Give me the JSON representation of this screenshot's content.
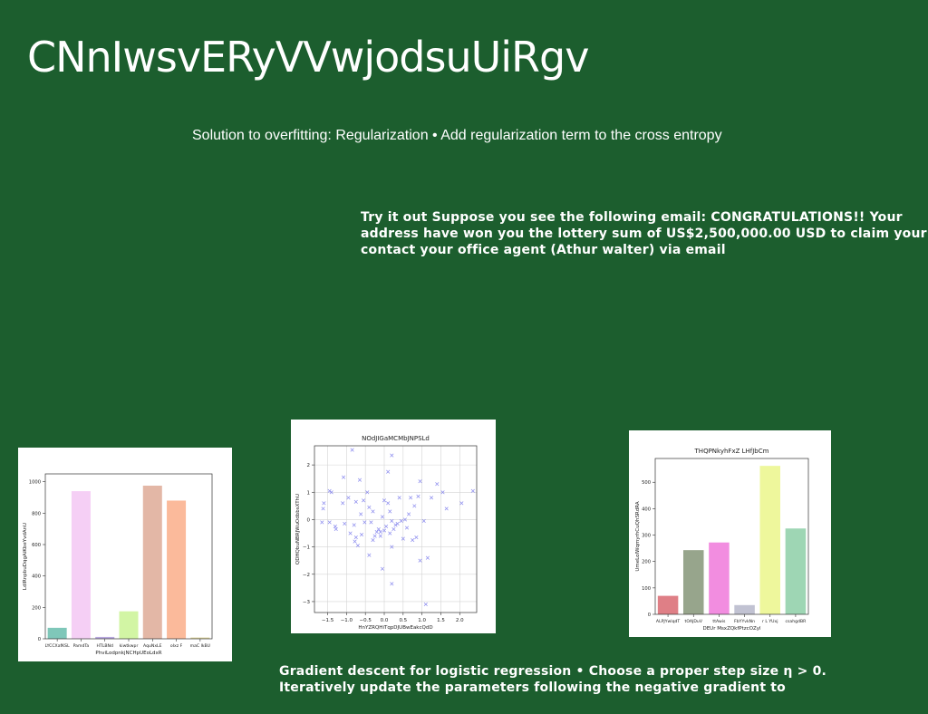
{
  "slide": {
    "title": "CNnIwsvERyVVwjodsuUiRgv",
    "subtitle": "Solution to overfitting: Regularization • Add regularization term to the cross entropy",
    "para1": [
      "Try it out Suppose you see the following email: CONGRATULATIONS!! Your",
      "address have won you the lottery sum of US$2,500,000.00 USD to claim your",
      "contact your office agent (Athur walter) via email"
    ],
    "para2": [
      "Gradient descent for logistic regression • Choose a proper step size η > 0.",
      "Iteratively update the parameters following the negative gradient to"
    ]
  },
  "chart_data": [
    {
      "type": "bar",
      "title": "",
      "xlabel": "PhviLodpnkjNCHpUEoLdxR",
      "ylabel": "LdlRnpbuDqgAiKbeYvdAnU",
      "categories": [
        "LYCCXafKSL",
        "PamdTa",
        "HTLBNd",
        "kiwtkwpr",
        "AquNxLE",
        "oIxz F",
        "maC lkBU"
      ],
      "values": [
        70,
        940,
        12,
        175,
        975,
        880,
        8
      ],
      "colors": [
        "#7fc7b9",
        "#f5cff5",
        "#b9a9e0",
        "#d2f5a4",
        "#e3b7a6",
        "#fbba9b",
        "#dfd59a"
      ],
      "ylim": [
        0,
        1050
      ],
      "yticks": [
        0,
        200,
        400,
        600,
        800,
        1000
      ]
    },
    {
      "type": "scatter",
      "title": "NOdJIGaMCMbJNPSLd",
      "xlabel": "HnYZRQHiTqpDJUBwEakcQdD",
      "ylabel": "QDHQbuNBRJWuOdbbsXThU",
      "xlim": [
        -1.85,
        2.45
      ],
      "ylim": [
        -3.4,
        2.7
      ],
      "xticks": [
        -1.5,
        -1.0,
        -0.5,
        0.0,
        0.5,
        1.0,
        1.5,
        2.0
      ],
      "xtick_labels": [
        "−1.5",
        "−1.0",
        "−0.5",
        "0.0",
        "0.5",
        "1.0",
        "1.5",
        "2.0"
      ],
      "yticks": [
        -3,
        -2,
        -1,
        0,
        1,
        2
      ],
      "ytick_labels": [
        "−3",
        "−2",
        "−1",
        "0",
        "1",
        "2"
      ],
      "marker_color": "#8a8aee",
      "points": [
        [
          -1.65,
          -0.1
        ],
        [
          -1.6,
          0.6
        ],
        [
          -1.62,
          0.4
        ],
        [
          -1.45,
          -0.1
        ],
        [
          -1.45,
          1.05
        ],
        [
          -1.4,
          1.0
        ],
        [
          -1.3,
          -0.25
        ],
        [
          -1.28,
          -0.35
        ],
        [
          -1.1,
          0.6
        ],
        [
          -1.08,
          1.55
        ],
        [
          -1.05,
          -0.15
        ],
        [
          -0.95,
          0.8
        ],
        [
          -0.9,
          -0.5
        ],
        [
          -0.85,
          2.55
        ],
        [
          -0.8,
          -0.2
        ],
        [
          -0.78,
          -0.8
        ],
        [
          -0.75,
          -0.65
        ],
        [
          -0.75,
          0.65
        ],
        [
          -0.7,
          -0.95
        ],
        [
          -0.65,
          1.45
        ],
        [
          -0.62,
          0.2
        ],
        [
          -0.6,
          -0.55
        ],
        [
          -0.55,
          0.7
        ],
        [
          -0.52,
          -0.1
        ],
        [
          -0.45,
          1.0
        ],
        [
          -0.4,
          0.45
        ],
        [
          -0.4,
          -1.3
        ],
        [
          -0.35,
          -0.1
        ],
        [
          -0.3,
          0.3
        ],
        [
          -0.3,
          -0.75
        ],
        [
          -0.25,
          -0.6
        ],
        [
          -0.2,
          -0.45
        ],
        [
          -0.15,
          -0.35
        ],
        [
          -0.1,
          -0.45
        ],
        [
          -0.1,
          -0.6
        ],
        [
          -0.05,
          0.1
        ],
        [
          -0.05,
          -1.8
        ],
        [
          0.0,
          0.7
        ],
        [
          0.0,
          -0.4
        ],
        [
          0.05,
          -0.25
        ],
        [
          0.1,
          0.6
        ],
        [
          0.1,
          1.75
        ],
        [
          0.15,
          0.3
        ],
        [
          0.15,
          -0.5
        ],
        [
          0.2,
          -0.05
        ],
        [
          0.2,
          2.35
        ],
        [
          0.2,
          -1.0
        ],
        [
          0.2,
          -2.35
        ],
        [
          0.25,
          -0.35
        ],
        [
          0.3,
          -0.2
        ],
        [
          0.35,
          -0.15
        ],
        [
          0.4,
          0.8
        ],
        [
          0.45,
          -0.05
        ],
        [
          0.5,
          -0.7
        ],
        [
          0.55,
          0.0
        ],
        [
          0.6,
          -0.3
        ],
        [
          0.65,
          0.2
        ],
        [
          0.7,
          0.8
        ],
        [
          0.75,
          -0.75
        ],
        [
          0.8,
          0.5
        ],
        [
          0.85,
          -0.65
        ],
        [
          0.9,
          0.85
        ],
        [
          0.95,
          1.4
        ],
        [
          0.95,
          -1.5
        ],
        [
          1.05,
          -0.05
        ],
        [
          1.1,
          -3.1
        ],
        [
          1.15,
          -1.4
        ],
        [
          1.25,
          0.8
        ],
        [
          1.4,
          1.3
        ],
        [
          1.55,
          1.0
        ],
        [
          1.65,
          0.4
        ],
        [
          2.05,
          0.6
        ],
        [
          2.35,
          1.05
        ]
      ]
    },
    {
      "type": "bar",
      "title": "THQPNkyhFxZ LHfJbCm",
      "xlabel": "DEUr MsxZQkfPtzcOZyl",
      "ylabel": "UmeLoIWqmyrhCuQhSRdRA",
      "categories": [
        "ALPJYwlqdT",
        "tOAJDuV",
        "ttAwis",
        "FbYYvkNn",
        "r L YUxj",
        "csahgdBR"
      ],
      "values": [
        70,
        243,
        272,
        35,
        562,
        325
      ],
      "colors": [
        "#df7f86",
        "#97a58c",
        "#f28de0",
        "#c1c2d2",
        "#eef79c",
        "#9ed6b4"
      ],
      "ylim": [
        0,
        590
      ],
      "yticks": [
        0,
        100,
        200,
        300,
        400,
        500
      ]
    }
  ]
}
